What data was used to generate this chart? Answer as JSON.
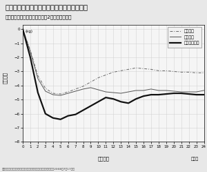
{
  "title": "ダイエット効果がもっとも高い低炭水化物食",
  "subtitle": "各ダイエットグループにおけと2年間の体重変化",
  "ylabel": "体重変化",
  "xlabel": "調査期間",
  "xlabel_suffix": "（月）",
  "kg_label": "(kg)",
  "source": "資料：『ニューイングランド・ジャーナル・オブ・メディスン』2008年7朆17日号",
  "xlim": [
    0,
    24
  ],
  "ylim": [
    -8,
    0.3
  ],
  "yticks": [
    0,
    -1,
    -2,
    -3,
    -4,
    -5,
    -6,
    -7,
    -8
  ],
  "xticks": [
    0,
    1,
    2,
    3,
    4,
    5,
    6,
    7,
    8,
    9,
    10,
    11,
    12,
    13,
    14,
    15,
    16,
    17,
    18,
    19,
    20,
    21,
    22,
    23,
    24
  ],
  "legend_labels": [
    "低指肪法",
    "地中海法",
    "低炭水化物法"
  ],
  "low_fat": [
    0,
    -1.5,
    -3.3,
    -4.2,
    -4.55,
    -4.6,
    -4.45,
    -4.25,
    -4.05,
    -3.75,
    -3.45,
    -3.25,
    -3.05,
    -2.95,
    -2.85,
    -2.75,
    -2.8,
    -2.85,
    -2.95,
    -2.95,
    -3.0,
    -3.05,
    -3.05,
    -3.1,
    -3.1
  ],
  "mediterranean": [
    0,
    -1.6,
    -3.5,
    -4.4,
    -4.65,
    -4.7,
    -4.55,
    -4.4,
    -4.25,
    -4.15,
    -4.3,
    -4.45,
    -4.5,
    -4.55,
    -4.45,
    -4.35,
    -4.35,
    -4.25,
    -4.35,
    -4.35,
    -4.4,
    -4.45,
    -4.45,
    -4.45,
    -4.35
  ],
  "low_carb": [
    0,
    -2.0,
    -4.5,
    -6.0,
    -6.3,
    -6.4,
    -6.15,
    -6.05,
    -5.75,
    -5.45,
    -5.15,
    -4.85,
    -4.95,
    -5.15,
    -5.25,
    -4.95,
    -4.75,
    -4.65,
    -4.65,
    -4.6,
    -4.55,
    -4.55,
    -4.6,
    -4.65,
    -4.65
  ],
  "bg_color": "#e8e8e8",
  "plot_bg_color": "#f5f5f5",
  "line_color_low_fat": "#666666",
  "line_color_mediterranean": "#555555",
  "line_color_low_carb": "#111111",
  "title_bar_color": "#555555",
  "grid_color": "#cccccc"
}
